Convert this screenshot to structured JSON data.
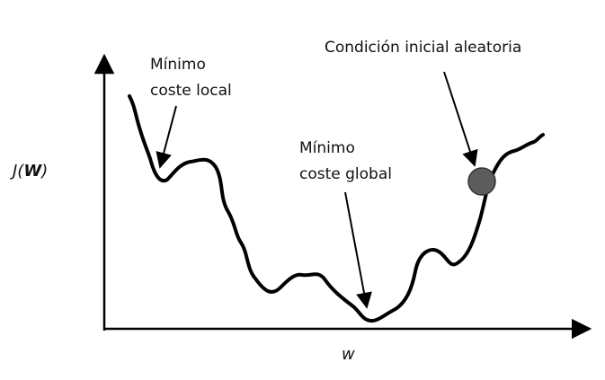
{
  "diagram": {
    "y_axis_label": {
      "prefix": "J(",
      "bold": "W",
      "suffix": ")"
    },
    "x_axis_label": "w",
    "annotations": {
      "local_min": {
        "line1": "Mínimo",
        "line2": "coste local"
      },
      "global_min": {
        "line1": "Mínimo",
        "line2": "coste global"
      },
      "initial_condition": {
        "text": "Condición inicial aleatoria"
      }
    },
    "colors": {
      "ink": "#000000",
      "ball_fill": "#5c5c5c",
      "ball_stroke": "#333333"
    }
  }
}
